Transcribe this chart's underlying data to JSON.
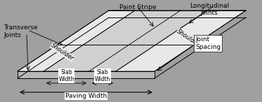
{
  "bg_color": "#a0a0a0",
  "slab_color": "#d0d0d0",
  "shoulder_color": "#e8e8e8",
  "front_face_color": "#b8b8b8",
  "white": "#ffffff",
  "black": "#000000",
  "fig_width": 3.73,
  "fig_height": 1.46,
  "dpi": 100,
  "labels": {
    "transverse_joints": "Transverse\nJoints",
    "paint_stripe": "Paint Stripe",
    "longitudinal_joints": "Longitudinal\nJoints",
    "shoulder1": "Shoulder",
    "shoulder2": "Shoulder",
    "slab_width1": "Slab\nWidth",
    "slab_width2": "Slab\nWidth",
    "paving_width": "Paving Width",
    "joint_spacing": "Joint\nSpacing"
  },
  "fontsize": 6.5,
  "small_fontsize": 5.5
}
